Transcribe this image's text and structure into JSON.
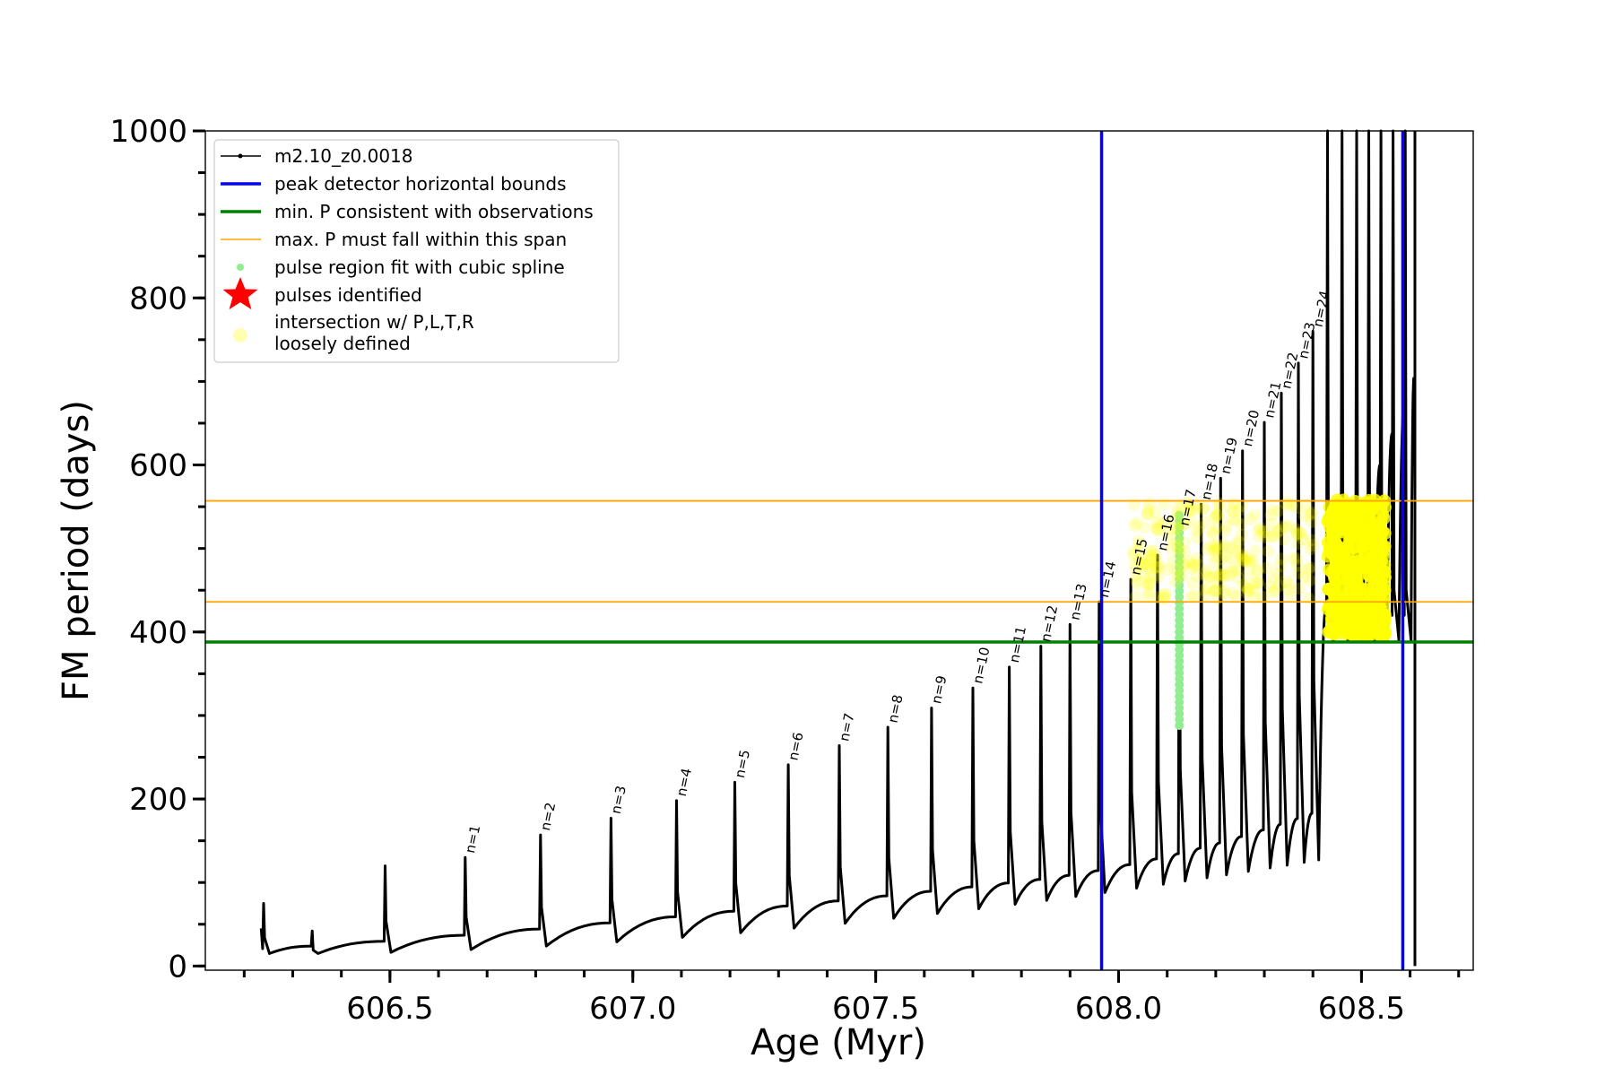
{
  "chart_data": {
    "type": "line",
    "title": "",
    "xlabel": "Age (Myr)",
    "ylabel": "FM period (days)",
    "xlim": [
      606.12,
      608.73
    ],
    "ylim": [
      -5,
      1000
    ],
    "xticks": [
      606.5,
      607.0,
      607.5,
      608.0,
      608.5
    ],
    "xtick_labels": [
      "606.5",
      "607.0",
      "607.5",
      "608.0",
      "608.5"
    ],
    "xminor_step": 0.1,
    "yticks": [
      0,
      200,
      400,
      600,
      800,
      1000
    ],
    "ytick_labels": [
      "0",
      "200",
      "400",
      "600",
      "800",
      "1000"
    ],
    "yminor_step": 50,
    "grid": false,
    "legend_position": "upper left",
    "colors": {
      "track": "#000000",
      "bounds": "#0000ff",
      "min_p": "#008000",
      "max_p": "#ffa500",
      "spline": "#90ee90",
      "star": "#ff0000",
      "intersection": "#ffff00"
    },
    "series": [
      {
        "name": "m2.10_z0.0018",
        "kind": "line-dot"
      },
      {
        "name": "peak detector horizontal bounds",
        "kind": "vline",
        "values": [
          607.965,
          608.585
        ]
      },
      {
        "name": "min. P consistent with observations",
        "kind": "hline",
        "values": [
          388
        ]
      },
      {
        "name": "max. P must fall within this span",
        "kind": "hline",
        "values": [
          436,
          557
        ]
      },
      {
        "name": "pulse region fit with cubic spline",
        "kind": "scatter",
        "x": 608.125,
        "y_range": [
          288,
          540
        ]
      },
      {
        "name": "pulses identified",
        "kind": "star",
        "points": []
      },
      {
        "name": "intersection w/ P,L,T,R\nloosely defined",
        "kind": "scatter-faded"
      }
    ],
    "pulses": [
      {
        "label": "n=1",
        "x": 606.655,
        "top": 130
      },
      {
        "label": "n=2",
        "x": 606.81,
        "top": 157
      },
      {
        "label": "n=3",
        "x": 606.955,
        "top": 177
      },
      {
        "label": "n=4",
        "x": 607.09,
        "top": 198
      },
      {
        "label": "n=5",
        "x": 607.21,
        "top": 220
      },
      {
        "label": "n=6",
        "x": 607.32,
        "top": 241
      },
      {
        "label": "n=7",
        "x": 607.425,
        "top": 264
      },
      {
        "label": "n=8",
        "x": 607.525,
        "top": 286
      },
      {
        "label": "n=9",
        "x": 607.615,
        "top": 309
      },
      {
        "label": "n=10",
        "x": 607.7,
        "top": 333
      },
      {
        "label": "n=11",
        "x": 607.775,
        "top": 358
      },
      {
        "label": "n=12",
        "x": 607.84,
        "top": 383
      },
      {
        "label": "n=13",
        "x": 607.9,
        "top": 409
      },
      {
        "label": "n=14",
        "x": 607.96,
        "top": 436
      },
      {
        "label": "n=15",
        "x": 608.025,
        "top": 463
      },
      {
        "label": "n=16",
        "x": 608.08,
        "top": 492
      },
      {
        "label": "n=17",
        "x": 608.125,
        "top": 522
      },
      {
        "label": "n=18",
        "x": 608.17,
        "top": 553
      },
      {
        "label": "n=19",
        "x": 608.21,
        "top": 584
      },
      {
        "label": "n=20",
        "x": 608.255,
        "top": 617
      },
      {
        "label": "n=21",
        "x": 608.3,
        "top": 651
      },
      {
        "label": "n=22",
        "x": 608.335,
        "top": 686
      },
      {
        "label": "n=23",
        "x": 608.37,
        "top": 722
      },
      {
        "label": "n=24",
        "x": 608.4,
        "top": 760
      }
    ],
    "extra_spikes": [
      606.24,
      606.34,
      606.49
    ]
  }
}
